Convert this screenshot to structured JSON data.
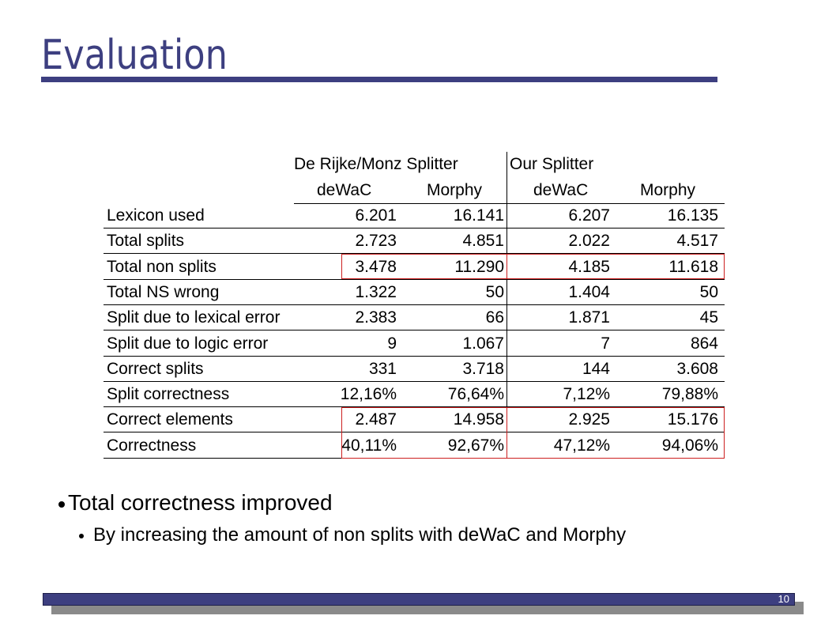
{
  "slide": {
    "title": "Evaluation",
    "page_number": "10"
  },
  "table": {
    "group_headers": [
      "De Rijke/Monz Splitter",
      "Our Splitter"
    ],
    "sub_headers": [
      "deWaC",
      "Morphy",
      "deWaC",
      "Morphy"
    ],
    "rows": [
      {
        "label": "Lexicon used",
        "values": [
          "6.201",
          "16.141",
          "6.207",
          "16.135"
        ]
      },
      {
        "label": "Total splits",
        "values": [
          "2.723",
          "4.851",
          "2.022",
          "4.517"
        ]
      },
      {
        "label": "Total non splits",
        "values": [
          "3.478",
          "11.290",
          "4.185",
          "11.618"
        ]
      },
      {
        "label": "Total NS wrong",
        "values": [
          "1.322",
          "50",
          "1.404",
          "50"
        ]
      },
      {
        "label": "Split due to lexical error",
        "values": [
          "2.383",
          "66",
          "1.871",
          "45"
        ]
      },
      {
        "label": "Split due to logic error",
        "values": [
          "9",
          "1.067",
          "7",
          "864"
        ]
      },
      {
        "label": "Correct splits",
        "values": [
          "331",
          "3.718",
          "144",
          "3.608"
        ]
      },
      {
        "label": "Split correctness",
        "values": [
          "12,16%",
          "76,64%",
          "7,12%",
          "79,88%"
        ]
      },
      {
        "label": "Correct elements",
        "values": [
          "2.487",
          "14.958",
          "2.925",
          "15.176"
        ]
      },
      {
        "label": "Correctness",
        "values": [
          "40,11%",
          "92,67%",
          "47,12%",
          "94,06%"
        ]
      }
    ]
  },
  "bullets": {
    "main": "Total correctness improved",
    "sub": "By increasing the amount of non splits with deWaC and Morphy"
  },
  "colors": {
    "accent": "#3d3f80",
    "highlight_box": "#cc1f1f"
  }
}
